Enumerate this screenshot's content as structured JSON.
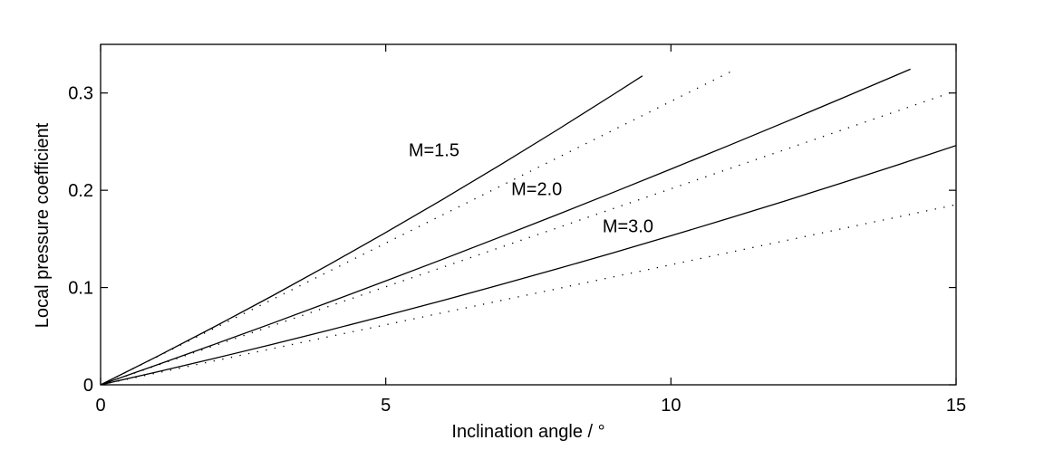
{
  "chart_data": {
    "type": "line",
    "title": "",
    "xlabel": "Inclination angle / °",
    "ylabel": "Local pressure coefficient",
    "xlim": [
      0,
      15
    ],
    "ylim": [
      0,
      0.35
    ],
    "xticks": [
      {
        "value": 0,
        "label": "0"
      },
      {
        "value": 5,
        "label": "5"
      },
      {
        "value": 10,
        "label": "10"
      },
      {
        "value": 15,
        "label": "15"
      }
    ],
    "yticks": [
      {
        "value": 0,
        "label": "0"
      },
      {
        "value": 0.1,
        "label": "0.1"
      },
      {
        "value": 0.2,
        "label": "0.2"
      },
      {
        "value": 0.3,
        "label": "0.3"
      }
    ],
    "grid": false,
    "legend": "none",
    "series": [
      {
        "name": "M=1.5",
        "style": "solid",
        "color": "#000000",
        "x": [
          0,
          1,
          2,
          3,
          4,
          5,
          6,
          7,
          8,
          9,
          9.5
        ],
        "y": [
          0,
          0.0294,
          0.0598,
          0.0911,
          0.1234,
          0.1566,
          0.1907,
          0.2258,
          0.2618,
          0.2988,
          0.3176
        ]
      },
      {
        "name": "",
        "style": "dotted",
        "color": "#000000",
        "x": [
          0,
          1,
          2,
          3,
          4,
          5,
          6,
          7,
          8,
          9,
          10,
          11,
          11.1
        ],
        "y": [
          0,
          0.0291,
          0.0583,
          0.0874,
          0.1165,
          0.1457,
          0.1748,
          0.2039,
          0.2331,
          0.2622,
          0.2914,
          0.3205,
          0.3234
        ]
      },
      {
        "name": "M=2.0",
        "style": "solid",
        "color": "#000000",
        "x": [
          0,
          1,
          2,
          3,
          4,
          5,
          6,
          7,
          8,
          9,
          10,
          11,
          12,
          13,
          14,
          14.2
        ],
        "y": [
          0,
          0.0207,
          0.0417,
          0.063,
          0.0848,
          0.1068,
          0.1291,
          0.1518,
          0.1748,
          0.1981,
          0.2218,
          0.2457,
          0.27,
          0.2946,
          0.3195,
          0.3245
        ]
      },
      {
        "name": "",
        "style": "dotted",
        "color": "#000000",
        "x": [
          0,
          1,
          2,
          3,
          4,
          5,
          6,
          7,
          8,
          9,
          10,
          11,
          12,
          13,
          14,
          15
        ],
        "y": [
          0,
          0.0202,
          0.0403,
          0.0605,
          0.0806,
          0.1008,
          0.1209,
          0.1411,
          0.1612,
          0.1814,
          0.2015,
          0.2217,
          0.2418,
          0.262,
          0.2821,
          0.3023
        ]
      },
      {
        "name": "M=3.0",
        "style": "solid",
        "color": "#000000",
        "x": [
          0,
          1,
          2,
          3,
          4,
          5,
          6,
          7,
          8,
          9,
          10,
          11,
          12,
          13,
          14,
          15
        ],
        "y": [
          0,
          0.0134,
          0.0272,
          0.0414,
          0.0561,
          0.0712,
          0.0867,
          0.1027,
          0.1191,
          0.1359,
          0.1532,
          0.1709,
          0.189,
          0.2076,
          0.2266,
          0.246
        ]
      },
      {
        "name": "",
        "style": "dotted",
        "color": "#000000",
        "x": [
          0,
          1,
          2,
          3,
          4,
          5,
          6,
          7,
          8,
          9,
          10,
          11,
          12,
          13,
          14,
          15
        ],
        "y": [
          0,
          0.0123,
          0.0247,
          0.037,
          0.0494,
          0.0617,
          0.0741,
          0.0864,
          0.0987,
          0.1111,
          0.1234,
          0.1358,
          0.1481,
          0.1605,
          0.1728,
          0.1852
        ]
      }
    ],
    "annotations": [
      {
        "text": "M=1.5",
        "x": 5.4,
        "y": 0.235
      },
      {
        "text": "M=2.0",
        "x": 7.2,
        "y": 0.195
      },
      {
        "text": "M=3.0",
        "x": 8.8,
        "y": 0.157
      }
    ]
  }
}
